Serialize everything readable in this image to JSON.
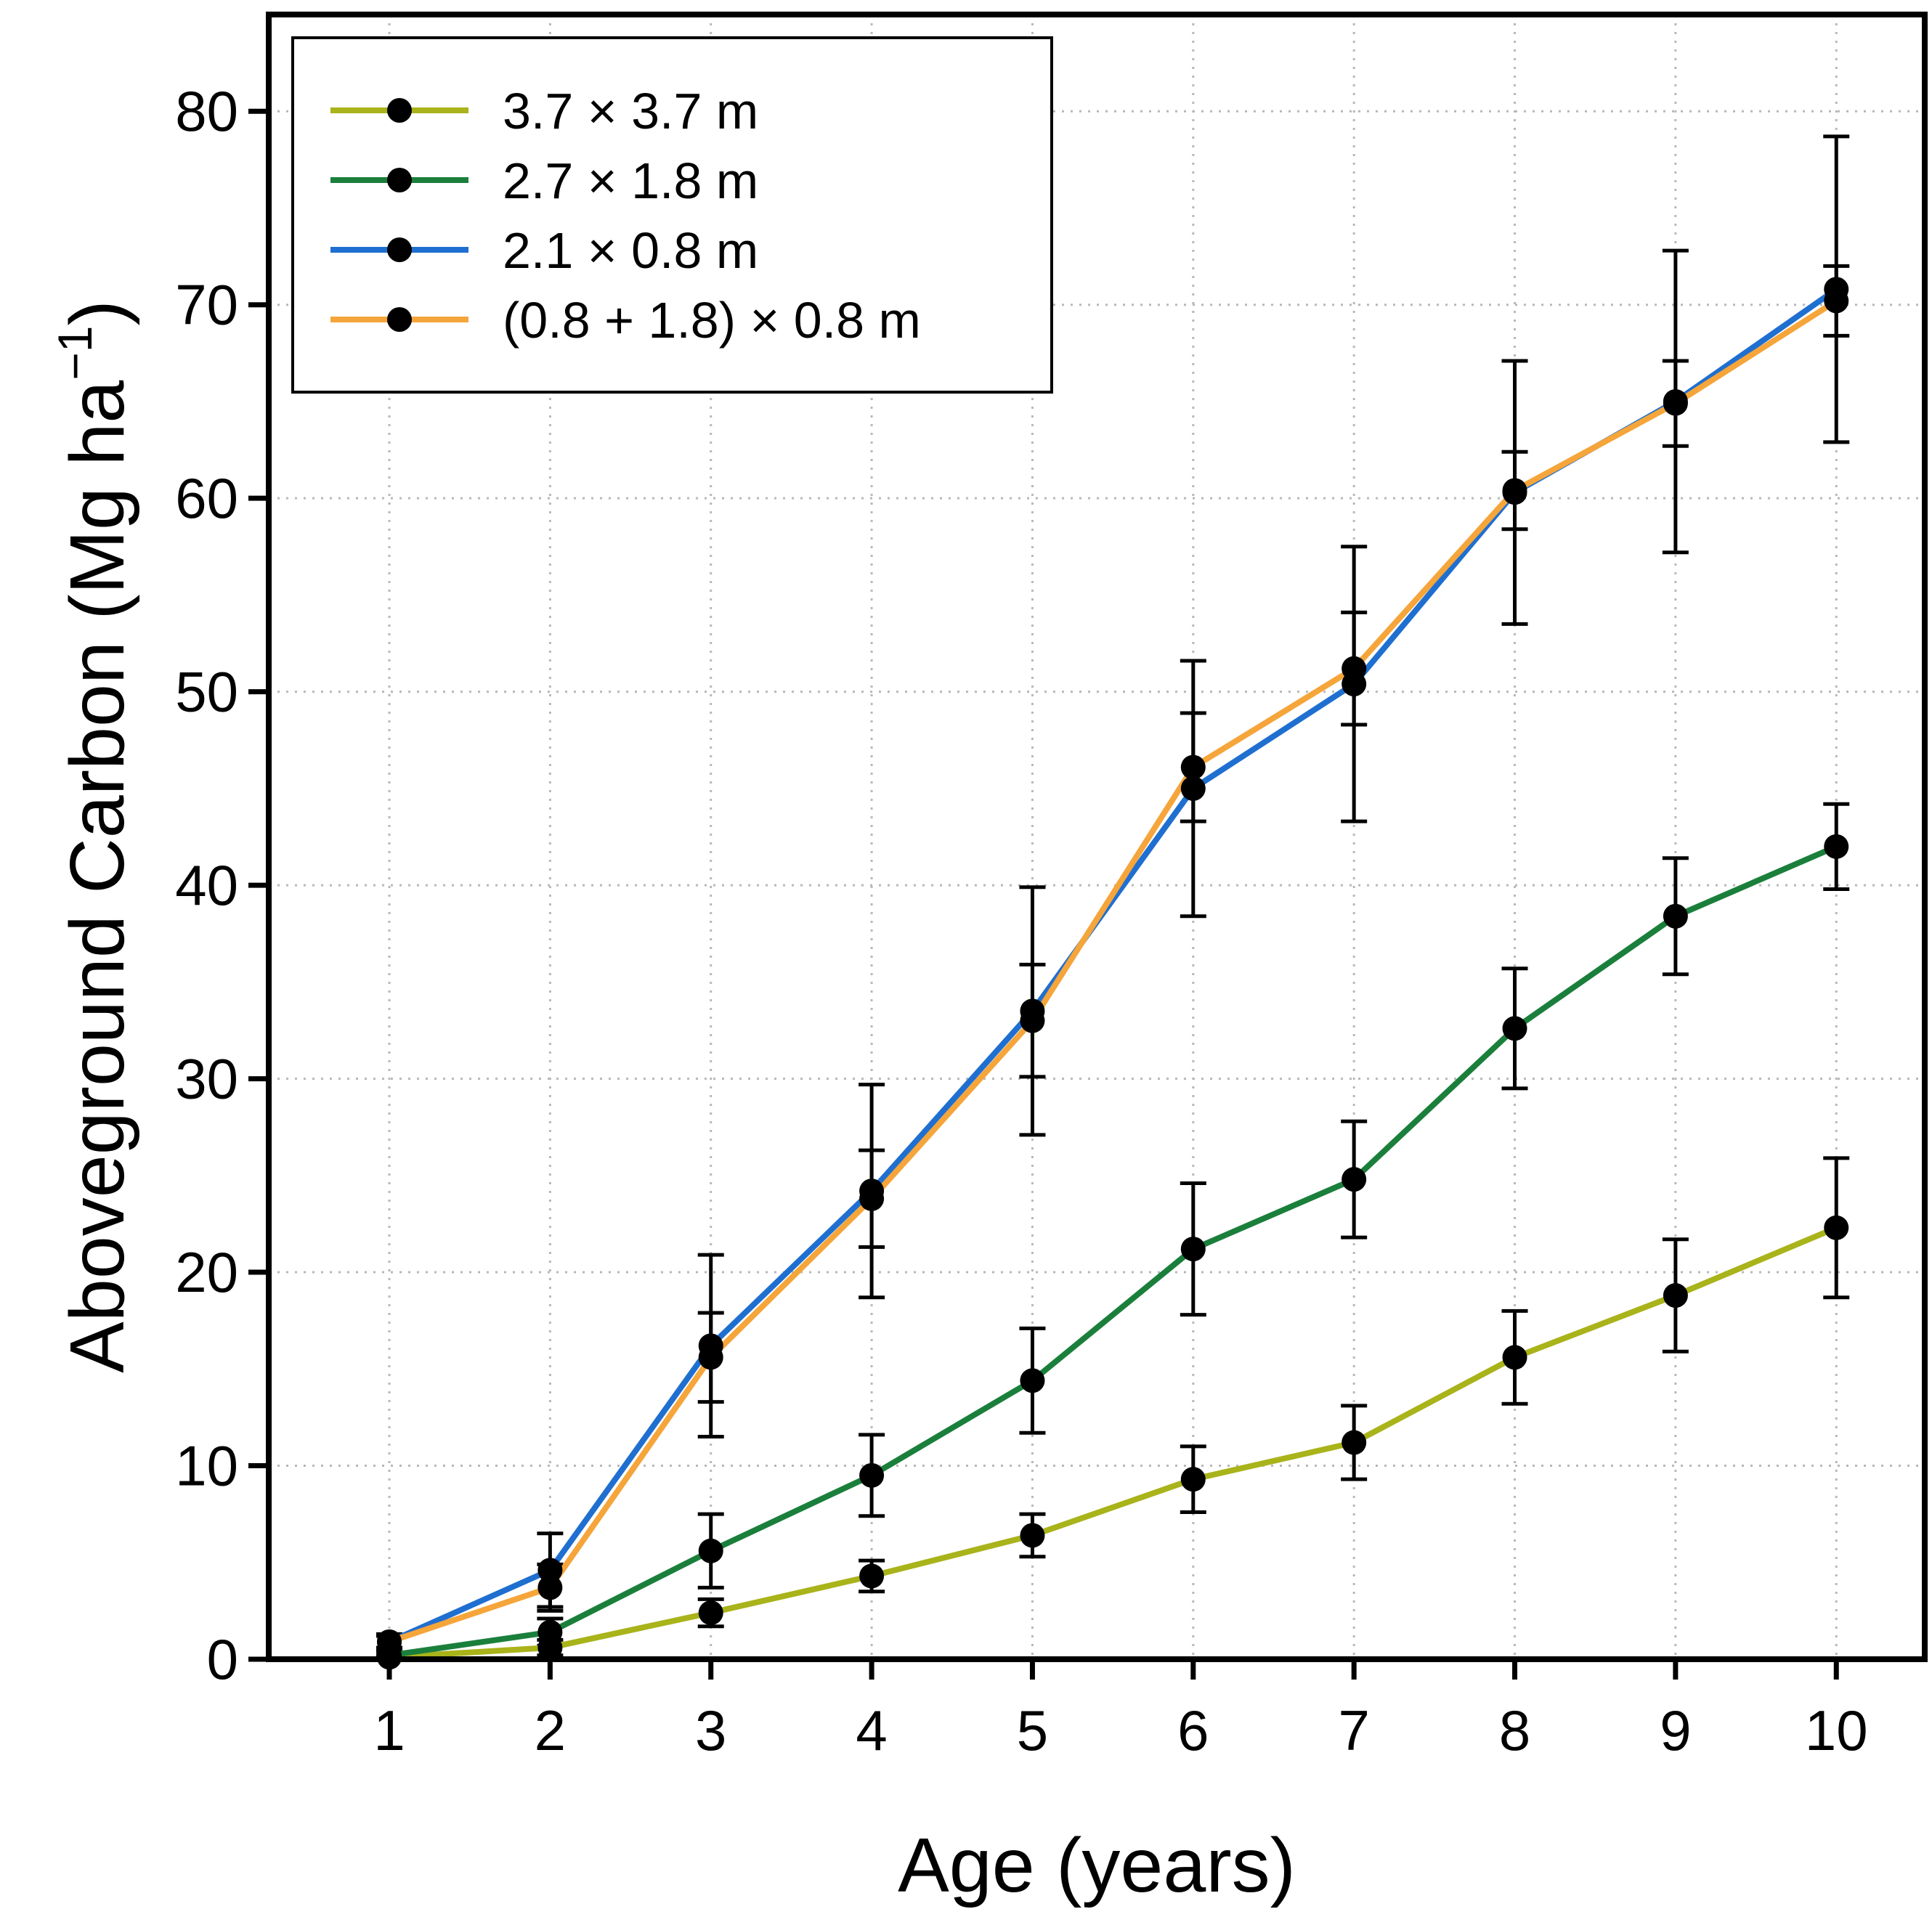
{
  "chart_data": {
    "type": "line",
    "title": "",
    "xlabel": "Age (years)",
    "ylabel_main": "Aboveground Carbon (Mg ha",
    "ylabel_sup": "−1",
    "ylabel_close": ")",
    "x": [
      1,
      2,
      3,
      4,
      5,
      6,
      7,
      8,
      9,
      10
    ],
    "xlim": [
      0.25,
      10.55
    ],
    "ylim": [
      0,
      85
    ],
    "xticks": [
      "1",
      "2",
      "3",
      "4",
      "5",
      "6",
      "7",
      "8",
      "9",
      "10"
    ],
    "yticks": [
      "0",
      "10",
      "20",
      "30",
      "40",
      "50",
      "60",
      "70",
      "80"
    ],
    "grid": true,
    "legend_position": "top-left",
    "series": [
      {
        "name": "3.7 × 3.7 m",
        "color": "#a9b31a",
        "values": [
          0.1,
          0.6,
          2.4,
          4.3,
          6.4,
          9.3,
          11.2,
          15.6,
          18.8,
          22.3
        ],
        "errors": [
          0.1,
          0.4,
          0.7,
          0.8,
          1.1,
          1.7,
          1.9,
          2.4,
          2.9,
          3.6
        ]
      },
      {
        "name": "2.7 × 1.8 m",
        "color": "#1b7f3c",
        "values": [
          0.2,
          1.4,
          5.6,
          9.5,
          14.4,
          21.2,
          24.8,
          32.6,
          38.4,
          42.0
        ],
        "errors": [
          0.2,
          0.7,
          1.9,
          2.1,
          2.7,
          3.4,
          3.0,
          3.1,
          3.0,
          2.2
        ]
      },
      {
        "name": "2.1 × 0.8 m",
        "color": "#1f6fd0",
        "values": [
          0.9,
          4.6,
          16.2,
          24.2,
          33.5,
          45.0,
          50.4,
          60.3,
          65.0,
          70.8
        ],
        "errors": [
          0.4,
          1.9,
          4.7,
          5.5,
          6.4,
          6.6,
          7.1,
          6.8,
          7.8,
          7.9
        ]
      },
      {
        "name": "(0.8 + 1.8) × 0.8 m",
        "color": "#f5a53a",
        "values": [
          0.9,
          3.7,
          15.6,
          23.8,
          33.0,
          46.1,
          51.2,
          60.4,
          64.9,
          70.2
        ],
        "errors": [
          0.3,
          1.2,
          2.3,
          2.5,
          2.9,
          2.8,
          2.9,
          2.0,
          2.2,
          1.8
        ]
      }
    ]
  }
}
